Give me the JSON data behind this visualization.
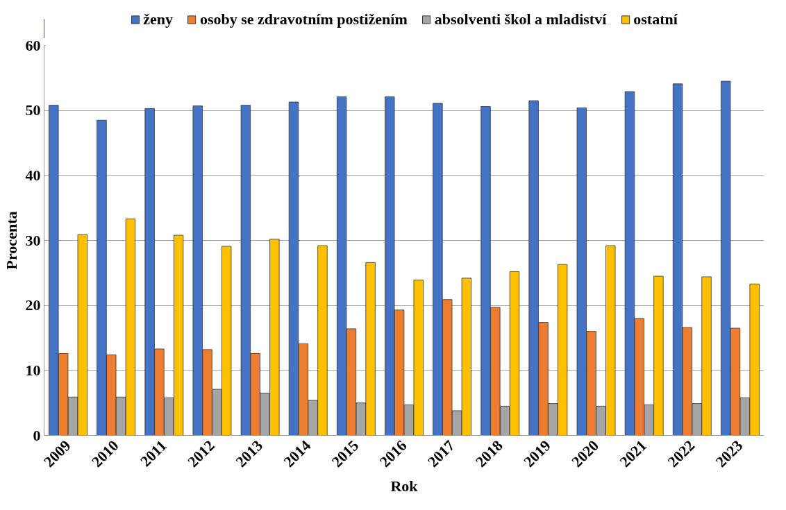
{
  "chart_data": {
    "type": "bar",
    "xlabel": "Rok",
    "ylabel": "Procenta",
    "categories": [
      "2009",
      "2010",
      "2011",
      "2012",
      "2013",
      "2014",
      "2015",
      "2016",
      "2017",
      "2018",
      "2019",
      "2020",
      "2021",
      "2022",
      "2023"
    ],
    "series": [
      {
        "name": "ženy",
        "color": "#4472c4",
        "values": [
          50.8,
          48.5,
          50.3,
          50.7,
          50.8,
          51.3,
          52.1,
          52.1,
          51.1,
          50.6,
          51.5,
          50.4,
          52.9,
          54.1,
          54.5
        ]
      },
      {
        "name": "osoby se zdravotním postižením",
        "color": "#ed7d31",
        "values": [
          12.6,
          12.4,
          13.3,
          13.2,
          12.6,
          14.1,
          16.4,
          19.3,
          20.9,
          19.7,
          17.4,
          16.0,
          18.0,
          16.6,
          16.5
        ]
      },
      {
        "name": "absolventi škol a mladiství",
        "color": "#a5a5a5",
        "values": [
          5.9,
          5.9,
          5.8,
          7.1,
          6.5,
          5.4,
          5.0,
          4.7,
          3.8,
          4.5,
          4.9,
          4.5,
          4.7,
          4.9,
          5.8
        ]
      },
      {
        "name": "ostatní",
        "color": "#ffc000",
        "values": [
          30.9,
          33.3,
          30.8,
          29.1,
          30.2,
          29.2,
          26.6,
          23.9,
          24.2,
          25.2,
          26.3,
          29.2,
          24.5,
          24.4,
          23.3
        ]
      }
    ],
    "ylim": [
      0,
      60
    ],
    "yticks": [
      0,
      10,
      20,
      30,
      40,
      50,
      60
    ],
    "grid": "y",
    "legend": "top"
  }
}
